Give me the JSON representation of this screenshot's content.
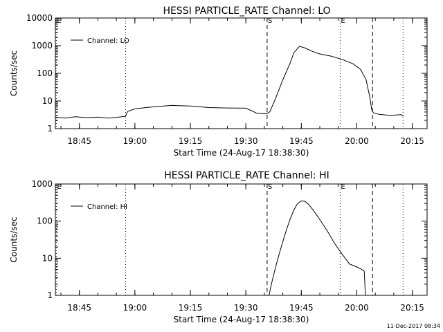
{
  "footer": {
    "timestamp": "11-Dec-2017 08:34"
  },
  "chart_data": [
    {
      "type": "line",
      "title": "HESSI PARTICLE_RATE Channel: LO",
      "xlabel": "Start Time (24-Aug-17 18:38:30)",
      "ylabel": "Counts/sec",
      "y_scale": "log",
      "ylim": [
        1,
        10000
      ],
      "xlim": [
        "18:38:30",
        "20:19:00"
      ],
      "x_ticks": [
        "18:45",
        "19:00",
        "19:15",
        "19:30",
        "19:45",
        "20:00",
        "20:15"
      ],
      "y_ticks": [
        "1",
        "10",
        "100",
        "1000",
        "10000"
      ],
      "legend": {
        "label": "Channel: LO",
        "position": "top-left"
      },
      "markers": [
        {
          "label": "E",
          "time": "18:38:45",
          "style": "dotted"
        },
        {
          "label": "",
          "time": "18:57:30",
          "style": "dotted"
        },
        {
          "label": "S",
          "time": "19:35:45",
          "style": "dashed"
        },
        {
          "label": "E",
          "time": "19:55:30",
          "style": "dotted"
        },
        {
          "label": "",
          "time": "20:04:15",
          "style": "dashed"
        },
        {
          "label": "",
          "time": "20:12:30",
          "style": "dotted"
        }
      ],
      "series": [
        {
          "name": "Channel: LO",
          "x": [
            "18:38:30",
            "18:41:00",
            "18:44:00",
            "18:47:00",
            "18:50:00",
            "18:53:00",
            "18:55:30",
            "18:57:30",
            "18:58:00",
            "19:00:00",
            "19:03:00",
            "19:06:00",
            "19:10:00",
            "19:15:00",
            "19:20:00",
            "19:25:00",
            "19:30:00",
            "19:33:00",
            "19:35:30",
            "19:36:30",
            "19:38:00",
            "19:40:00",
            "19:42:00",
            "19:43:00",
            "19:44:30",
            "19:46:00",
            "19:48:00",
            "19:50:00",
            "19:53:00",
            "19:56:00",
            "19:59:00",
            "20:01:00",
            "20:02:30",
            "20:03:30",
            "20:04:00",
            "20:04:30",
            "20:06:00",
            "20:09:00",
            "20:12:00",
            "20:12:30"
          ],
          "values": [
            2.6,
            2.4,
            2.7,
            2.5,
            2.6,
            2.4,
            2.6,
            2.8,
            4.2,
            5.2,
            5.8,
            6.3,
            6.9,
            6.6,
            5.8,
            5.6,
            5.5,
            3.6,
            3.4,
            4.1,
            12,
            58,
            240,
            560,
            950,
            820,
            620,
            500,
            420,
            320,
            220,
            140,
            60,
            14,
            5,
            3.7,
            3.3,
            3.0,
            3.2,
            2.8
          ]
        }
      ]
    },
    {
      "type": "line",
      "title": "HESSI PARTICLE_RATE Channel: HI",
      "xlabel": "Start Time (24-Aug-17 18:38:30)",
      "ylabel": "Counts/sec",
      "y_scale": "log",
      "ylim": [
        1,
        1000
      ],
      "xlim": [
        "18:38:30",
        "20:19:00"
      ],
      "x_ticks": [
        "18:45",
        "19:00",
        "19:15",
        "19:30",
        "19:45",
        "20:00",
        "20:15"
      ],
      "y_ticks": [
        "1",
        "10",
        "100",
        "1000"
      ],
      "legend": {
        "label": "Channel: HI",
        "position": "top-left"
      },
      "markers": [
        {
          "label": "E",
          "time": "18:38:45",
          "style": "dotted"
        },
        {
          "label": "",
          "time": "18:57:30",
          "style": "dotted"
        },
        {
          "label": "S",
          "time": "19:35:45",
          "style": "dashed"
        },
        {
          "label": "E",
          "time": "19:55:30",
          "style": "dotted"
        },
        {
          "label": "",
          "time": "20:04:15",
          "style": "dashed"
        },
        {
          "label": "",
          "time": "20:12:30",
          "style": "dotted"
        }
      ],
      "series": [
        {
          "name": "Channel: HI",
          "x": [
            "19:36:15",
            "19:37:00",
            "19:38:00",
            "19:39:00",
            "19:40:00",
            "19:41:00",
            "19:42:00",
            "19:43:00",
            "19:44:00",
            "19:45:00",
            "19:46:00",
            "19:47:00",
            "19:48:00",
            "19:50:00",
            "19:52:00",
            "19:54:00",
            "19:56:00",
            "19:58:00",
            "20:00:00",
            "20:01:00",
            "20:02:00",
            "20:02:20"
          ],
          "values": [
            1,
            2.2,
            5.5,
            13,
            28,
            60,
            115,
            200,
            300,
            350,
            340,
            280,
            210,
            110,
            55,
            25,
            13,
            7,
            5.8,
            5.2,
            4.5,
            1
          ]
        }
      ]
    }
  ]
}
